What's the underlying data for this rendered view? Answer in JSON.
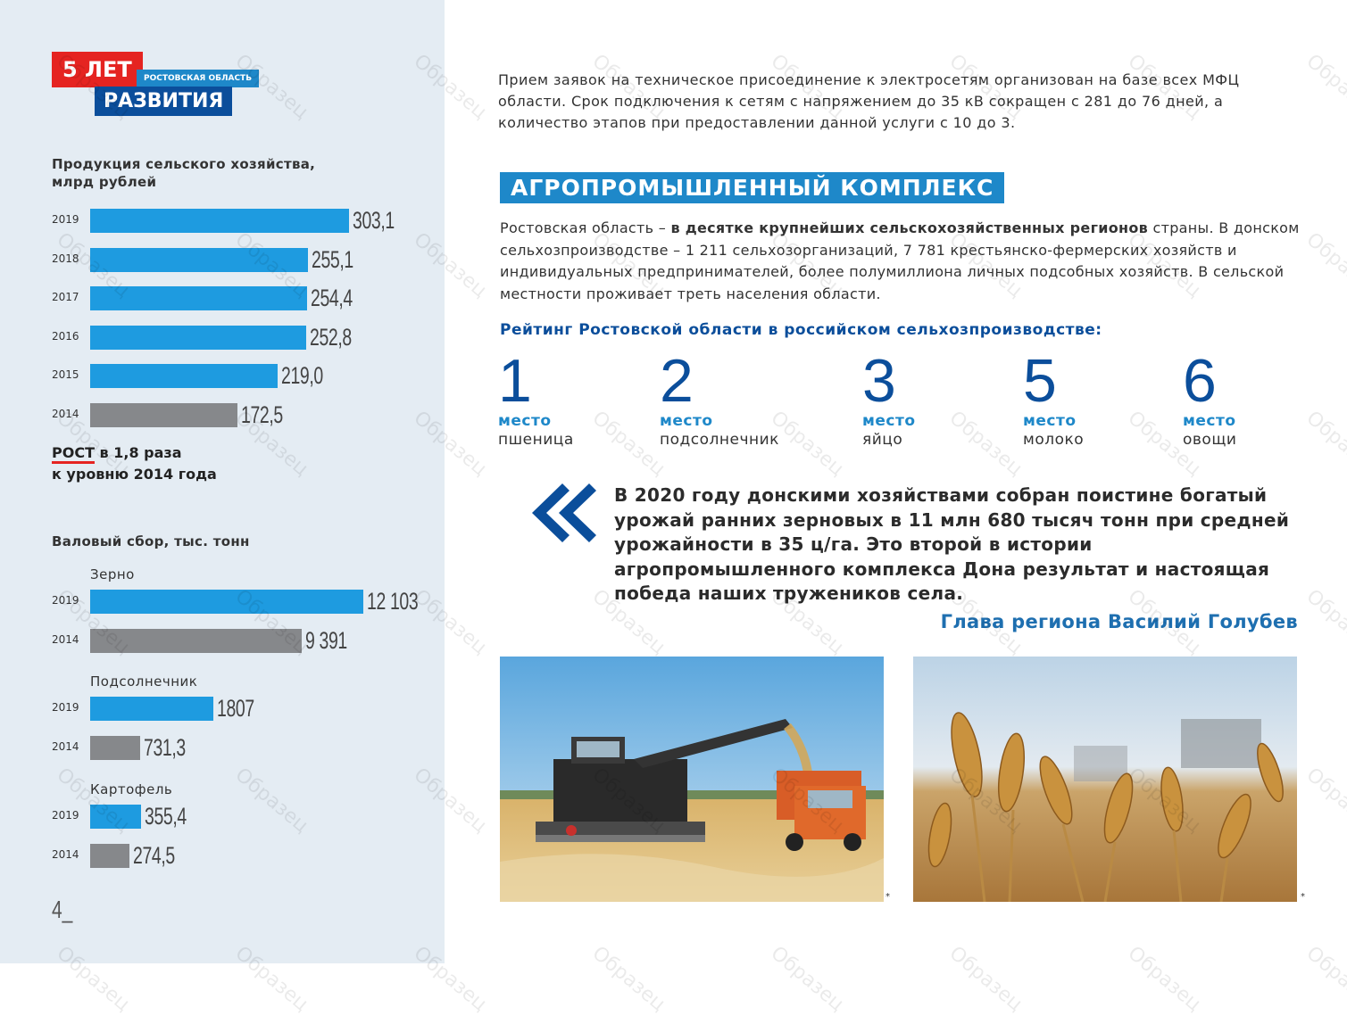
{
  "logo": {
    "years": "5 ЛЕТ",
    "region": "РОСТОВСКАЯ ОБЛАСТЬ",
    "development": "РАЗВИТИЯ"
  },
  "agri_chart": {
    "title_line1": "Продукция сельского хозяйства,",
    "title_line2": "млрд рублей",
    "rows": [
      {
        "year": "2019",
        "value": 303.1,
        "label": "303,1",
        "color": "#1e9be0"
      },
      {
        "year": "2018",
        "value": 255.1,
        "label": "255,1",
        "color": "#1e9be0"
      },
      {
        "year": "2017",
        "value": 254.4,
        "label": "254,4",
        "color": "#1e9be0"
      },
      {
        "year": "2016",
        "value": 252.8,
        "label": "252,8",
        "color": "#1e9be0"
      },
      {
        "year": "2015",
        "value": 219.0,
        "label": "219,0",
        "color": "#1e9be0"
      },
      {
        "year": "2014",
        "value": 172.5,
        "label": "172,5",
        "color": "#86888b"
      }
    ]
  },
  "growth": {
    "word": "РОСТ",
    "rest": " в 1,8 раза",
    "line2": "к уровню 2014 года"
  },
  "harvest": {
    "title": "Валовый сбор, тыс. тонн",
    "groups": [
      {
        "name": "Зерно",
        "rows": [
          {
            "year": "2019",
            "value": 12103,
            "label": "12 103",
            "color": "#1e9be0"
          },
          {
            "year": "2014",
            "value": 9391,
            "label": "9 391",
            "color": "#86888b"
          }
        ]
      },
      {
        "name": "Подсолнечник",
        "rows": [
          {
            "year": "2019",
            "value": 1807,
            "label": "1807",
            "color": "#1e9be0"
          },
          {
            "year": "2014",
            "value": 731.3,
            "label": "731,3",
            "color": "#86888b"
          }
        ]
      },
      {
        "name": "Картофель",
        "rows": [
          {
            "year": "2019",
            "value": 355.4,
            "label": "355,4",
            "color": "#1e9be0"
          },
          {
            "year": "2014",
            "value": 274.5,
            "label": "274,5",
            "color": "#86888b"
          }
        ]
      }
    ]
  },
  "page_number": "4_",
  "intro": "Прием заявок на техническое присоединение к электросетям организован на базе всех МФЦ области. Срок подключения к сетям с напряжением до 35 кВ сокращен с 281 до 76 дней, а количество этапов при предоставлении данной услуги с 10 до 3.",
  "section_title": "АГРОПРОМЫШЛЕННЫЙ КОМПЛЕКС",
  "body": {
    "part1": "Ростовская область – ",
    "bold": "в десятке крупнейших сельскохозяйственных регионов",
    "part2": " страны. В донском сельхозпроизводстве – 1 211 сельхозорганизаций, 7 781 крестьянско-фермерских хозяйств и индивидуальных предпринимателей, более полумиллиона личных подсобных хозяйств. В сельской местности проживает треть населения области."
  },
  "rating": {
    "title": "Рейтинг Ростовской области в российском сельхозпроизводстве:",
    "items": [
      {
        "num": "1",
        "word": "место",
        "what": "пшеница"
      },
      {
        "num": "2",
        "word": "место",
        "what": "подсолнечник"
      },
      {
        "num": "3",
        "word": "место",
        "what": "яйцо"
      },
      {
        "num": "5",
        "word": "место",
        "what": "молоко"
      },
      {
        "num": "6",
        "word": "место",
        "what": "овощи"
      }
    ]
  },
  "quote": {
    "text": "В 2020 году донскими хозяйствами собран поистине богатый урожай ранних зерновых в 11 млн 680 тысяч тонн при средней урожайности в 35 ц/га. Это второй в истории агропромышленного комплекса Дона результат и настоящая победа наших тружеников села.",
    "author": "Глава региона Василий Голубев"
  },
  "photo_marks": [
    "*",
    "*"
  ],
  "watermark": "Образец",
  "colors": {
    "blue": "#1e9be0",
    "navy": "#0b4e9b",
    "gray": "#86888b",
    "red": "#e52421",
    "panel": "#e4ecf3"
  }
}
